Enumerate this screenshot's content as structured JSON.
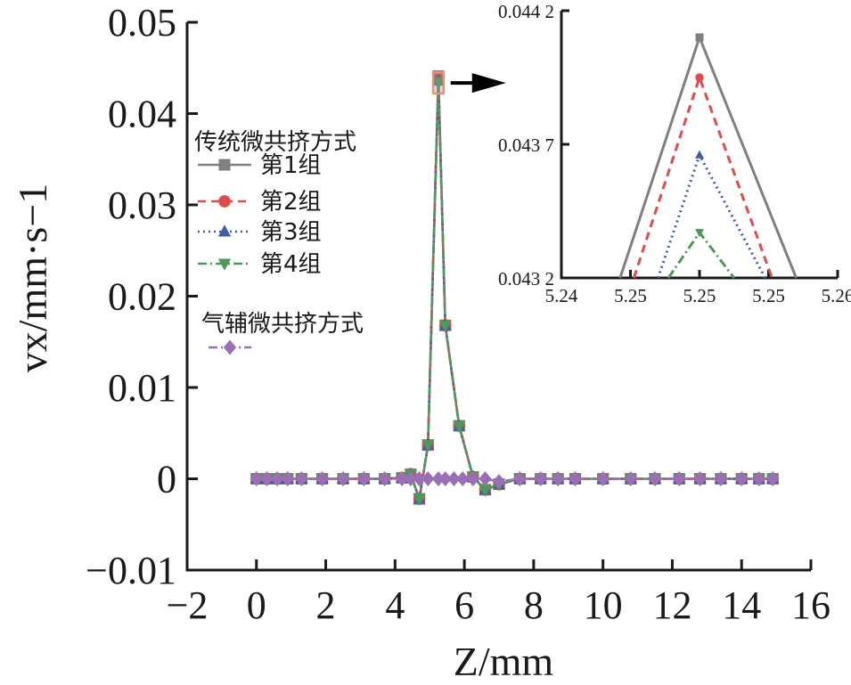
{
  "chart_data": [
    {
      "type": "line",
      "title": "",
      "xlabel": "Z/mm",
      "ylabel": "vx/mm·s−1",
      "xlim": [
        -2,
        16
      ],
      "ylim": [
        -0.01,
        0.05
      ],
      "xticks": [
        -2,
        0,
        2,
        4,
        6,
        8,
        10,
        12,
        14,
        16
      ],
      "yticks": [
        -0.01,
        0,
        0.01,
        0.02,
        0.03,
        0.04,
        0.05
      ],
      "xtick_labels": [
        "−2",
        "0",
        "2",
        "4",
        "6",
        "8",
        "10",
        "12",
        "14",
        "16"
      ],
      "ytick_labels": [
        "−0.01",
        "0",
        "0.01",
        "0.02",
        "0.03",
        "0.04",
        "0.05"
      ],
      "grid": false,
      "legend_placement": "upper-left",
      "legend_groups": [
        {
          "title": "传统微共挤方式",
          "series": [
            "第1组",
            "第2组",
            "第3组",
            "第4组"
          ]
        },
        {
          "title": "气辅微共挤方式",
          "series": [
            ""
          ]
        }
      ],
      "series": [
        {
          "name": "第1组",
          "color": "#7f7f7f",
          "dash": "solid",
          "marker": "square",
          "x": [
            0,
            0.3,
            0.6,
            0.9,
            1.3,
            1.9,
            2.5,
            3.1,
            3.7,
            4.2,
            4.45,
            4.7,
            4.95,
            5.25,
            5.45,
            5.85,
            6.25,
            6.6,
            7.0,
            7.6,
            8.2,
            8.7,
            9.2,
            10.0,
            10.8,
            11.5,
            12.2,
            12.8,
            13.4,
            14.0,
            14.5,
            14.9
          ],
          "y": [
            0,
            0,
            0,
            0,
            0,
            0,
            0,
            0,
            0,
            0.0001,
            0.0005,
            -0.0022,
            0.0037,
            0.0441,
            0.0168,
            0.0058,
            0.0002,
            -0.0012,
            -0.0006,
            0,
            0,
            0,
            0,
            0,
            0,
            0,
            0,
            0,
            0,
            0,
            0,
            0
          ]
        },
        {
          "name": "第2组",
          "color": "#e04b4b",
          "dash": "dashed",
          "marker": "circle",
          "x": [
            0,
            0.3,
            0.6,
            0.9,
            1.3,
            1.9,
            2.5,
            3.1,
            3.7,
            4.2,
            4.45,
            4.7,
            4.95,
            5.25,
            5.45,
            5.85,
            6.25,
            6.6,
            7.0,
            7.6,
            8.2,
            8.7,
            9.2,
            10.0,
            10.8,
            11.5,
            12.2,
            12.8,
            13.4,
            14.0,
            14.5,
            14.9
          ],
          "y": [
            0,
            0,
            0,
            0,
            0,
            0,
            0,
            0,
            0,
            0.0001,
            0.0005,
            -0.0022,
            0.0037,
            0.044,
            0.0168,
            0.0058,
            0.0002,
            -0.0012,
            -0.0006,
            0,
            0,
            0,
            0,
            0,
            0,
            0,
            0,
            0,
            0,
            0,
            0,
            0
          ]
        },
        {
          "name": "第3组",
          "color": "#3f5fa8",
          "dash": "dotted",
          "marker": "triangle",
          "x": [
            0,
            0.3,
            0.6,
            0.9,
            1.3,
            1.9,
            2.5,
            3.1,
            3.7,
            4.2,
            4.45,
            4.7,
            4.95,
            5.25,
            5.45,
            5.85,
            6.25,
            6.6,
            7.0,
            7.6,
            8.2,
            8.7,
            9.2,
            10.0,
            10.8,
            11.5,
            12.2,
            12.8,
            13.4,
            14.0,
            14.5,
            14.9
          ],
          "y": [
            0,
            0,
            0,
            0,
            0,
            0,
            0,
            0,
            0,
            0.0001,
            0.0005,
            -0.0022,
            0.0037,
            0.0436,
            0.0168,
            0.0058,
            0.0002,
            -0.0012,
            -0.0006,
            0,
            0,
            0,
            0,
            0,
            0,
            0,
            0,
            0,
            0,
            0,
            0,
            0
          ]
        },
        {
          "name": "第4组",
          "color": "#4a9a5a",
          "dash": "dashdot",
          "marker": "triangle-down",
          "x": [
            0,
            0.3,
            0.6,
            0.9,
            1.3,
            1.9,
            2.5,
            3.1,
            3.7,
            4.2,
            4.45,
            4.7,
            4.95,
            5.25,
            5.45,
            5.85,
            6.25,
            6.6,
            7.0,
            7.6,
            8.2,
            8.7,
            9.2,
            10.0,
            10.8,
            11.5,
            12.2,
            12.8,
            13.4,
            14.0,
            14.5,
            14.9
          ],
          "y": [
            0,
            0,
            0,
            0,
            0,
            0,
            0,
            0,
            0,
            0.0001,
            0.0005,
            -0.0022,
            0.0037,
            0.0434,
            0.0168,
            0.0058,
            0.0002,
            -0.0012,
            -0.0006,
            0,
            0,
            0,
            0,
            0,
            0,
            0,
            0,
            0,
            0,
            0,
            0,
            0
          ]
        },
        {
          "name": "",
          "color": "#9b6fb8",
          "dash": "dashdot",
          "marker": "diamond",
          "x": [
            0,
            0.3,
            0.6,
            0.9,
            1.3,
            1.9,
            2.5,
            3.1,
            3.7,
            4.2,
            4.45,
            4.7,
            4.95,
            5.25,
            5.45,
            5.7,
            5.95,
            6.25,
            6.6,
            7.0,
            7.6,
            8.2,
            8.7,
            9.2,
            10.0,
            10.8,
            11.5,
            12.2,
            12.8,
            13.4,
            14.0,
            14.5,
            14.9
          ],
          "y": [
            0,
            0,
            0,
            0,
            0,
            0,
            0,
            0,
            0,
            0,
            0,
            0,
            0,
            0,
            0,
            0,
            0,
            0,
            0,
            -0.0003,
            0,
            0,
            0,
            0,
            0,
            0,
            0,
            0,
            0,
            0,
            0,
            0,
            0
          ]
        }
      ],
      "zoom_box": {
        "xlim": [
          5.1,
          5.4
        ],
        "ylim": [
          0.0422,
          0.0445
        ]
      }
    },
    {
      "type": "line",
      "title": "",
      "xlabel": "",
      "ylabel": "",
      "grid": false,
      "xticks": [
        0,
        1,
        2,
        3,
        4
      ],
      "xtick_labels": [
        "5.24",
        "5.25",
        "5.25",
        "5.25",
        "5.26"
      ],
      "yticks": [
        0.0432,
        0.0437,
        0.0442
      ],
      "ytick_labels": [
        "0.043 2",
        "0.043 7",
        "0.044 2"
      ],
      "xlim": [
        0,
        4
      ],
      "ylim": [
        0.0432,
        0.0442
      ],
      "series": [
        {
          "name": "第1组",
          "color": "#7f7f7f",
          "dash": "solid",
          "marker": "square",
          "x": [
            0.85,
            2.0,
            3.4
          ],
          "y": [
            0.0432,
            0.0441,
            0.0432
          ]
        },
        {
          "name": "第2组",
          "color": "#e04b4b",
          "dash": "dashed",
          "marker": "circle",
          "x": [
            1.05,
            2.0,
            3.05
          ],
          "y": [
            0.0432,
            0.04395,
            0.0432
          ]
        },
        {
          "name": "第3组",
          "color": "#3f5fa8",
          "dash": "dotted",
          "marker": "triangle",
          "x": [
            1.4,
            2.0,
            2.95
          ],
          "y": [
            0.0432,
            0.04366,
            0.0432
          ]
        },
        {
          "name": "第4组",
          "color": "#4a9a5a",
          "dash": "dashdot",
          "marker": "triangle-down",
          "x": [
            1.55,
            2.0,
            2.5
          ],
          "y": [
            0.0432,
            0.04337,
            0.0432
          ]
        }
      ]
    }
  ]
}
